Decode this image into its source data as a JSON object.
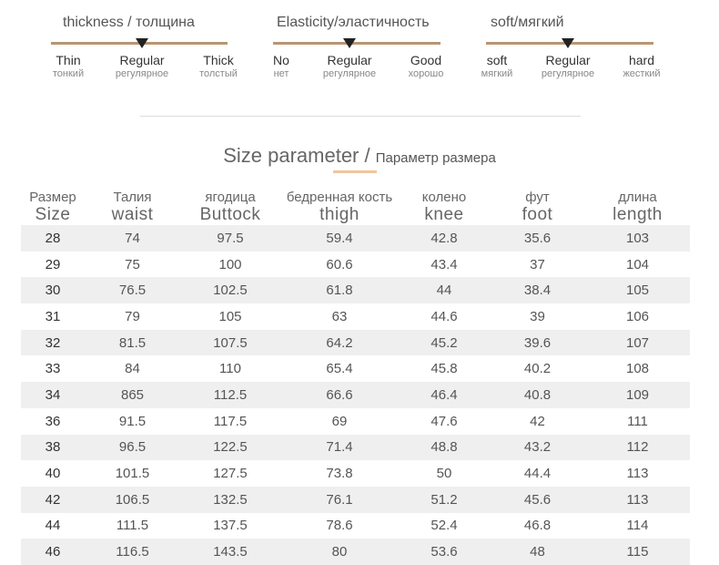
{
  "scales": [
    {
      "title": "thickness / толщина",
      "options": [
        {
          "en": "Thin",
          "ru": "тонкий"
        },
        {
          "en": "Regular",
          "ru": "регулярное"
        },
        {
          "en": "Thick",
          "ru": "толстый"
        }
      ],
      "selected": "Regular"
    },
    {
      "title": "Elasticity/эластичность",
      "options": [
        {
          "en": "No",
          "ru": "нет"
        },
        {
          "en": "Regular",
          "ru": "регулярное"
        },
        {
          "en": "Good",
          "ru": "хорошо"
        }
      ],
      "selected": "Regular"
    },
    {
      "title": "soft/мягкий",
      "options": [
        {
          "en": "soft",
          "ru": "мягкий"
        },
        {
          "en": "Regular",
          "ru": "регулярное"
        },
        {
          "en": "hard",
          "ru": "жесткий"
        }
      ],
      "selected": "Regular"
    }
  ],
  "heading": {
    "main": "Size parameter / ",
    "sub": "Параметр размера"
  },
  "table": {
    "columns": [
      {
        "ru": "Размер",
        "en": "Size"
      },
      {
        "ru": "Талия",
        "en": "waist"
      },
      {
        "ru": "ягодица",
        "en": "Buttock"
      },
      {
        "ru": "бедренная кость",
        "en": "thigh"
      },
      {
        "ru": "колено",
        "en": "knee"
      },
      {
        "ru": "фут",
        "en": "foot"
      },
      {
        "ru": "длина",
        "en": "length"
      }
    ],
    "rows": [
      [
        "28",
        "74",
        "97.5",
        "59.4",
        "42.8",
        "35.6",
        "103"
      ],
      [
        "29",
        "75",
        "100",
        "60.6",
        "43.4",
        "37",
        "104"
      ],
      [
        "30",
        "76.5",
        "102.5",
        "61.8",
        "44",
        "38.4",
        "105"
      ],
      [
        "31",
        "79",
        "105",
        "63",
        "44.6",
        "39",
        "106"
      ],
      [
        "32",
        "81.5",
        "107.5",
        "64.2",
        "45.2",
        "39.6",
        "107"
      ],
      [
        "33",
        "84",
        "110",
        "65.4",
        "45.8",
        "40.2",
        "108"
      ],
      [
        "34",
        "865",
        "112.5",
        "66.6",
        "46.4",
        "40.8",
        "109"
      ],
      [
        "36",
        "91.5",
        "117.5",
        "69",
        "47.6",
        "42",
        "111"
      ],
      [
        "38",
        "96.5",
        "122.5",
        "71.4",
        "48.8",
        "43.2",
        "112"
      ],
      [
        "40",
        "101.5",
        "127.5",
        "73.8",
        "50",
        "44.4",
        "113"
      ],
      [
        "42",
        "106.5",
        "132.5",
        "76.1",
        "51.2",
        "45.6",
        "113"
      ],
      [
        "44",
        "111.5",
        "137.5",
        "78.6",
        "52.4",
        "46.8",
        "114"
      ],
      [
        "46",
        "116.5",
        "143.5",
        "80",
        "53.6",
        "48",
        "115"
      ]
    ]
  },
  "colors": {
    "scale_line": "#b79675",
    "marker": "#222222",
    "row_shade": "#efefef",
    "heading_accent": "#f0c69a"
  }
}
